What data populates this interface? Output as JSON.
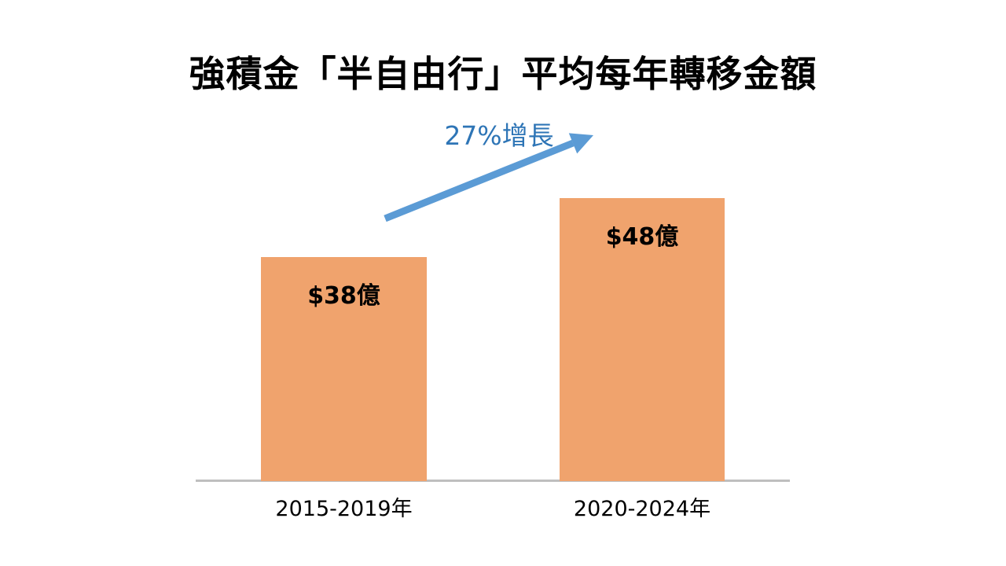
{
  "chart_data": {
    "type": "bar",
    "title": "強積金「半自由行」平均每年轉移金額",
    "categories": [
      "2015-2019年",
      "2020-2024年"
    ],
    "values": [
      38,
      48
    ],
    "bar_labels": [
      "$38億",
      "$48億"
    ],
    "annotation": "27%增長",
    "xlabel": "",
    "ylabel": "",
    "ylim": [
      0,
      50
    ],
    "y_axis_visible": false,
    "grid": false,
    "legend": false,
    "colors": {
      "bar": "#F0A36D",
      "arrow": "#5B9BD5",
      "annotation_text": "#2E75B6",
      "axis_line": "#BFBFBF",
      "text": "#000000",
      "background": "#FFFFFF"
    }
  }
}
